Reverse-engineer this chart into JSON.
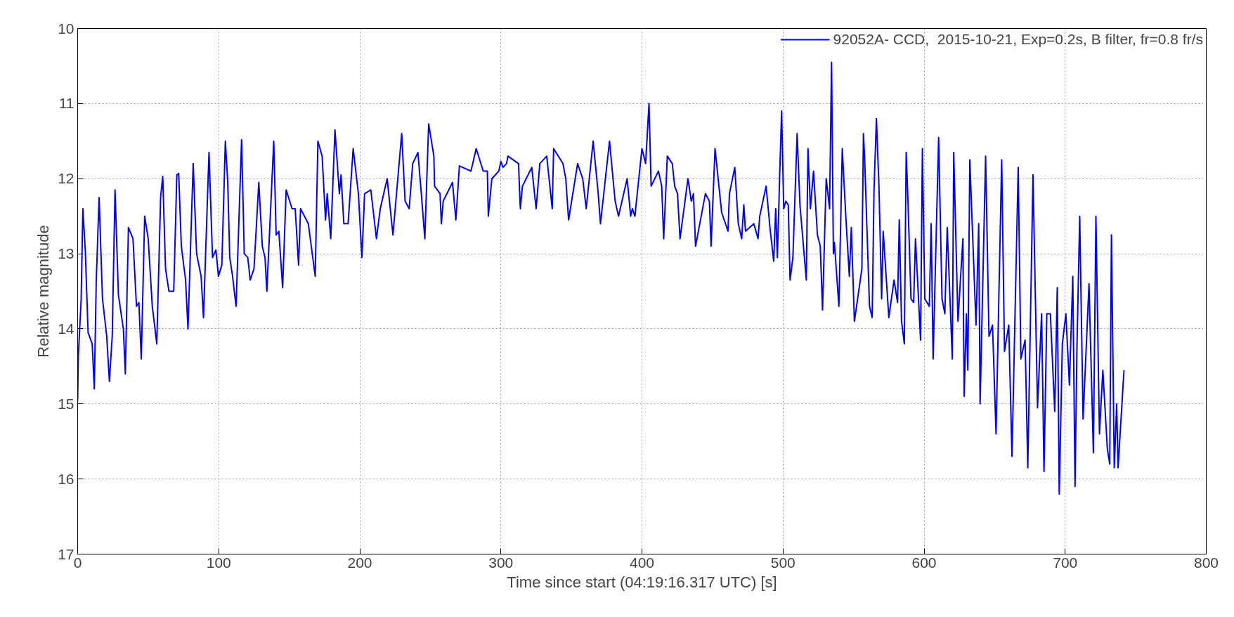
{
  "chart_data": {
    "type": "line",
    "xlabel": "Time since start (04:19:16.317 UTC) [s]",
    "ylabel": "Relative magnitude",
    "xlim": [
      0,
      800
    ],
    "xticks": [
      0,
      100,
      200,
      300,
      400,
      500,
      600,
      700,
      800
    ],
    "ylim": [
      17,
      10
    ],
    "yticks": [
      10,
      11,
      12,
      13,
      14,
      15,
      16,
      17
    ],
    "grid": true,
    "legend": "top right",
    "marker": "none",
    "line_style": "solid",
    "series": [
      {
        "name": "92052A- CCD,  2015-10-21, Exp=0.2s, B filter, fr=0.8 fr/s",
        "color": "#0000ff",
        "x": [
          0,
          0.5,
          2.5,
          3.7,
          5.4,
          7.4,
          10.3,
          11.8,
          13.2,
          15.2,
          17.6,
          20.6,
          22.5,
          24.5,
          26.5,
          28.9,
          32.4,
          33.8,
          36,
          39.2,
          41.7,
          43.4,
          45.1,
          47.5,
          50,
          52.9,
          56.1,
          58.8,
          60.3,
          62.3,
          64.7,
          68.1,
          70.3,
          71.6,
          73.5,
          76.5,
          78.2,
          81.9,
          84.3,
          87.5,
          89.2,
          93.1,
          95.6,
          98,
          99.8,
          102.2,
          104.7,
          106.4,
          107.8,
          109.8,
          112.3,
          116.2,
          118.1,
          120.6,
          122.3,
          125,
          128.4,
          130.9,
          132.8,
          134.1,
          139,
          140.7,
          142.6,
          145.3,
          147.8,
          152,
          154.2,
          156.6,
          158,
          163.5,
          168.4,
          170.3,
          173.3,
          175.7,
          176.9,
          179.4,
          182.4,
          185.5,
          186.7,
          188.7,
          191.7,
          195.3,
          199,
          201.5,
          203.4,
          207.8,
          211.8,
          214.5,
          219.4,
          223.5,
          229.7,
          232.1,
          235,
          237.5,
          241.2,
          243.6,
          246.1,
          248.8,
          252.5,
          253,
          256.9,
          257.8,
          259.1,
          265.7,
          268.1,
          270.6,
          278.8,
          282.5,
          287.5,
          290.4,
          291.1,
          293.6,
          298.5,
          300,
          301.5,
          304,
          305,
          312.5,
          313.8,
          315.3,
          321.9,
          325,
          327.6,
          332.5,
          336.4,
          337.4,
          344,
          346,
          348,
          354.4,
          358,
          360.5,
          365.4,
          369,
          370.6,
          377,
          381,
          383.4,
          389.5,
          392,
          393.2,
          395,
          400,
          402.6,
          405,
          406.5,
          411.7,
          414,
          415.4,
          418,
          421.5,
          423.2,
          425.2,
          427,
          432.6,
          435,
          436.5,
          438,
          445,
          447.8,
          449,
          451.8,
          456.5,
          461,
          462,
          465.8,
          468.3,
          470.7,
          472.2,
          473.4,
          479.3,
          482.3,
          483.5,
          488,
          491,
          493.4,
          494.8,
          496,
          497.8,
          499,
          500.5,
          502,
          503.7,
          505,
          507,
          510,
          512,
          516.5,
          517.7,
          519.4,
          521.6,
          524.4,
          526.4,
          528,
          530.6,
          533,
          534.4,
          535.7,
          536.4,
          539.6,
          542,
          544.5,
          547,
          548.4,
          550.6,
          555.9,
          557,
          557.8,
          561.3,
          563.2,
          564.5,
          566.2,
          568,
          569.9,
          571,
          575,
          578.7,
          581.2,
          582.4,
          584,
          586,
          587.3,
          588.5,
          590.7,
          592.6,
          593.9,
          597.5,
          598.8,
          600.5,
          603.7,
          605,
          606.4,
          610.3,
          612.7,
          614.7,
          616.4,
          620,
          621,
          624,
          627.5,
          628.4,
          630,
          631,
          632.4,
          636.8,
          638.7,
          639.7,
          643.6,
          646,
          648.5,
          651,
          655,
          657,
          660,
          662.3,
          666.7,
          668.6,
          671.6,
          673.5,
          677.2,
          680.4,
          683.3,
          685,
          687,
          689.5,
          692.6,
          694.4,
          695.8,
          698,
          700.5,
          703,
          705.4,
          707,
          708.3,
          710.3,
          712.7,
          716.9,
          720,
          721.8,
          724.3,
          726.7,
          729.9,
          731.6,
          732.8,
          734.8,
          736.5,
          737.5,
          741.7
        ],
        "values": [
          14.95,
          14.35,
          13.6,
          12.4,
          12.95,
          14.05,
          14.2,
          14.8,
          13.35,
          12.25,
          13.6,
          14.1,
          14.7,
          14.1,
          12.15,
          13.55,
          14.0,
          14.6,
          12.65,
          12.8,
          13.7,
          13.65,
          14.4,
          12.5,
          12.8,
          13.7,
          14.2,
          12.25,
          11.97,
          13.2,
          13.5,
          13.5,
          11.95,
          11.93,
          12.9,
          13.35,
          14.0,
          11.8,
          13.0,
          13.3,
          13.85,
          11.65,
          13.05,
          12.95,
          13.3,
          13.15,
          11.5,
          12.05,
          13.05,
          13.3,
          13.7,
          11.48,
          13.0,
          13.05,
          13.35,
          13.2,
          12.05,
          12.9,
          13.05,
          13.5,
          11.5,
          12.75,
          12.7,
          13.45,
          12.15,
          12.4,
          12.4,
          13.15,
          12.4,
          12.6,
          13.3,
          11.5,
          11.7,
          12.55,
          12.2,
          12.8,
          11.35,
          12.2,
          11.95,
          12.6,
          12.6,
          11.6,
          12.2,
          13.05,
          12.2,
          12.15,
          12.8,
          12.4,
          12.0,
          12.75,
          11.4,
          12.3,
          12.4,
          11.8,
          11.65,
          12.2,
          12.8,
          11.27,
          11.7,
          12.1,
          12.2,
          12.6,
          12.3,
          12.05,
          12.55,
          11.83,
          11.9,
          11.6,
          11.9,
          11.9,
          12.5,
          12.0,
          11.9,
          11.77,
          11.85,
          11.8,
          11.7,
          11.8,
          12.4,
          12.1,
          11.85,
          12.4,
          11.8,
          11.7,
          12.4,
          11.6,
          11.8,
          12.0,
          12.55,
          11.8,
          12.0,
          12.4,
          11.5,
          12.2,
          12.6,
          11.5,
          12.3,
          12.5,
          12.0,
          12.5,
          12.4,
          12.5,
          11.6,
          11.8,
          11.0,
          12.1,
          11.9,
          12.1,
          12.8,
          11.7,
          11.8,
          12.1,
          12.2,
          12.8,
          12.0,
          12.3,
          12.2,
          12.9,
          12.2,
          12.3,
          12.9,
          11.6,
          12.45,
          12.7,
          12.2,
          11.85,
          12.6,
          12.8,
          12.35,
          12.7,
          12.6,
          12.8,
          12.5,
          12.1,
          12.7,
          13.1,
          12.4,
          13.05,
          11.85,
          11.1,
          12.4,
          12.3,
          12.35,
          13.35,
          13.05,
          11.4,
          12.35,
          13.35,
          11.6,
          12.4,
          11.9,
          12.75,
          12.9,
          13.75,
          12.0,
          12.4,
          10.45,
          13.0,
          12.85,
          13.7,
          11.6,
          12.5,
          13.3,
          12.65,
          13.9,
          13.2,
          11.4,
          11.7,
          13.7,
          13.85,
          12.15,
          11.2,
          12.1,
          13.6,
          12.7,
          13.85,
          13.35,
          13.65,
          12.55,
          13.9,
          14.2,
          11.65,
          12.25,
          13.6,
          13.65,
          12.8,
          14.15,
          11.6,
          13.6,
          13.7,
          12.6,
          14.4,
          11.45,
          13.6,
          13.8,
          12.65,
          14.4,
          11.65,
          13.9,
          12.8,
          14.9,
          13.8,
          14.55,
          11.75,
          13.95,
          12.6,
          15.0,
          11.7,
          14.1,
          13.95,
          15.4,
          11.75,
          14.3,
          13.95,
          15.7,
          11.85,
          14.4,
          14.15,
          15.85,
          11.95,
          15.05,
          13.8,
          15.9,
          13.8,
          13.8,
          15.1,
          13.45,
          16.2,
          14.2,
          13.8,
          14.75,
          13.3,
          16.1,
          14.3,
          12.5,
          15.2,
          13.4,
          15.65,
          12.5,
          15.4,
          14.55,
          15.6,
          15.8,
          12.75,
          15.85,
          15.0,
          15.85,
          14.55
        ]
      }
    ]
  }
}
